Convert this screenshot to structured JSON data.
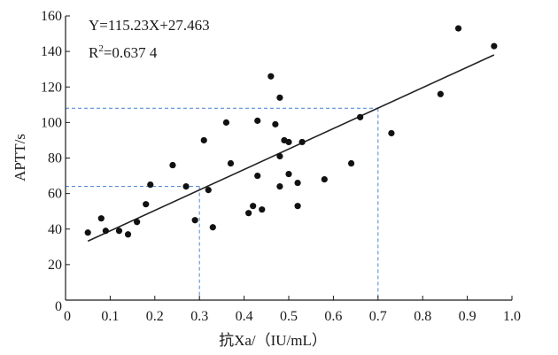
{
  "chart_data": {
    "type": "scatter",
    "xlabel": "抗Xa/（IU/mL）",
    "ylabel": "APTT/s",
    "xlim": [
      0,
      1.0
    ],
    "ylim": [
      0,
      160
    ],
    "x_ticks": [
      "0",
      "0.1",
      "0.2",
      "0.3",
      "0.4",
      "0.5",
      "0.6",
      "0.7",
      "0.8",
      "0.9",
      "1.0"
    ],
    "y_ticks": [
      "0",
      "20",
      "40",
      "60",
      "80",
      "100",
      "120",
      "140",
      "160"
    ],
    "annotations": {
      "equation": "Y=115.23X+27.463",
      "r_squared_prefix": "R",
      "r_squared_exp": "2",
      "r_squared_value": "=0.637 4"
    },
    "fit_line": {
      "slope": 115.23,
      "intercept": 27.463,
      "x_range": [
        0.05,
        0.96
      ]
    },
    "reference_lines": [
      {
        "x": 0.3,
        "y": 64
      },
      {
        "x": 0.7,
        "y": 108
      }
    ],
    "points": [
      [
        0.05,
        38
      ],
      [
        0.08,
        46
      ],
      [
        0.09,
        39
      ],
      [
        0.12,
        39
      ],
      [
        0.14,
        37
      ],
      [
        0.16,
        44
      ],
      [
        0.18,
        54
      ],
      [
        0.19,
        65
      ],
      [
        0.24,
        76
      ],
      [
        0.27,
        64
      ],
      [
        0.29,
        45
      ],
      [
        0.31,
        90
      ],
      [
        0.32,
        62
      ],
      [
        0.33,
        41
      ],
      [
        0.36,
        100
      ],
      [
        0.37,
        77
      ],
      [
        0.41,
        49
      ],
      [
        0.42,
        53
      ],
      [
        0.43,
        101
      ],
      [
        0.43,
        70
      ],
      [
        0.44,
        51
      ],
      [
        0.46,
        126
      ],
      [
        0.47,
        99
      ],
      [
        0.48,
        114
      ],
      [
        0.48,
        81
      ],
      [
        0.48,
        64
      ],
      [
        0.49,
        90
      ],
      [
        0.5,
        89
      ],
      [
        0.5,
        71
      ],
      [
        0.52,
        66
      ],
      [
        0.52,
        53
      ],
      [
        0.53,
        89
      ],
      [
        0.58,
        68
      ],
      [
        0.64,
        77
      ],
      [
        0.66,
        103
      ],
      [
        0.73,
        94
      ],
      [
        0.84,
        116
      ],
      [
        0.88,
        153
      ],
      [
        0.96,
        143
      ]
    ]
  }
}
